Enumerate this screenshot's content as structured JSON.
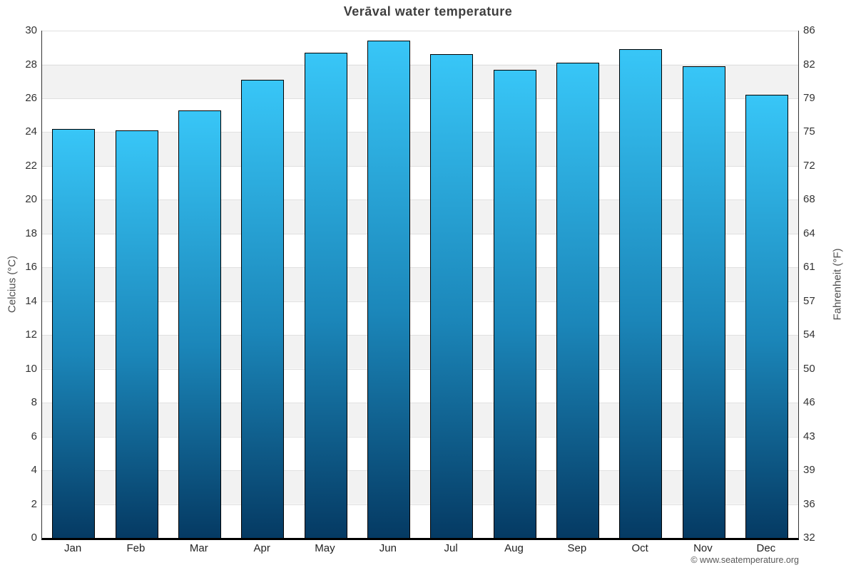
{
  "header": {
    "title": "Verāval water temperature"
  },
  "footer": {
    "copyright": "© www.seatemperature.org"
  },
  "chart_data": {
    "type": "bar",
    "title": "Verāval water temperature",
    "categories": [
      "Jan",
      "Feb",
      "Mar",
      "Apr",
      "May",
      "Jun",
      "Jul",
      "Aug",
      "Sep",
      "Oct",
      "Nov",
      "Dec"
    ],
    "values": [
      24.2,
      24.1,
      25.3,
      27.1,
      28.7,
      29.4,
      28.6,
      27.7,
      28.1,
      28.9,
      27.9,
      26.2
    ],
    "unit": "°C",
    "ylabel_left": "Celcius (°C)",
    "ylabel_right": "Fahrenheit (°F)",
    "ylim": [
      0,
      30
    ],
    "yticks_celsius": [
      0,
      2,
      4,
      6,
      8,
      10,
      12,
      14,
      16,
      18,
      20,
      22,
      24,
      26,
      28,
      30
    ],
    "yticks_fahrenheit": [
      32,
      36,
      39,
      43,
      46,
      50,
      54,
      57,
      61,
      64,
      68,
      72,
      75,
      79,
      82,
      86
    ],
    "legend": "none",
    "grid": "horizontal gridlines at 2°C steps with alternating white/gray background bands",
    "colors": {
      "bar_top": "#38c6f7",
      "bar_mid": "#1b86b9",
      "bar_bottom": "#053a63",
      "bar_border": "#000000",
      "band_gray": "#f2f2f2",
      "gridline": "#e0e0e0",
      "axis_line": "#333333",
      "bottom_axis_line": "#000000",
      "tick_text": "#333333",
      "month_text": "#222222",
      "axis_title_text": "#4d4d4d",
      "title_text": "#3f3f3f",
      "copyright_text": "#595959"
    }
  }
}
